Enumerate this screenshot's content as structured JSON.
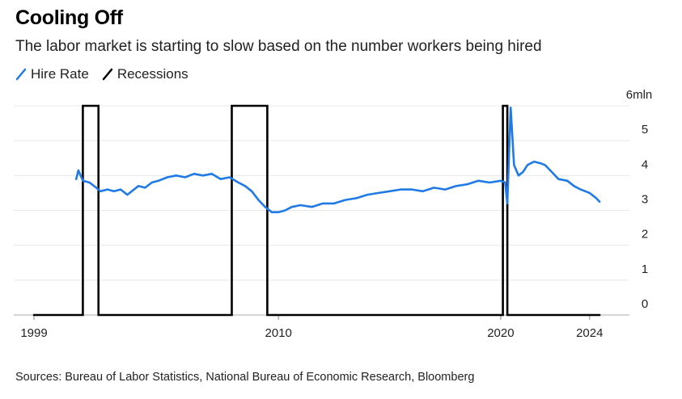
{
  "title": "Cooling Off",
  "subtitle": "The labor market is starting to slow based on the number workers being hired",
  "source": "Sources: Bureau of Labor Statistics, National Bureau of Economic Research, Bloomberg",
  "legend": [
    {
      "name": "Hire Rate",
      "color": "#1f7ae6"
    },
    {
      "name": "Recessions",
      "color": "#000000"
    }
  ],
  "chart_data": {
    "type": "line",
    "title": "Cooling Off",
    "subtitle": "The labor market is starting to slow based on the number workers being hired",
    "xlabel": "",
    "ylabel": "",
    "x_range": [
      1999,
      2024.7
    ],
    "ylim": [
      0,
      6
    ],
    "y_unit": "mln",
    "x_ticks": [
      "1999",
      "2010",
      "2020",
      "2024"
    ],
    "x_tick_values": [
      1999,
      2010,
      2020,
      2024
    ],
    "y_ticks": [
      "0",
      "1",
      "2",
      "3",
      "4",
      "5",
      "6mln"
    ],
    "y_tick_values": [
      0,
      1,
      2,
      3,
      4,
      5,
      6
    ],
    "grid": true,
    "legend_position": "top-left",
    "series": [
      {
        "name": "Hire Rate",
        "color": "#1f7ae6",
        "x": [
          2000.9,
          2001.0,
          2001.2,
          2001.5,
          2001.8,
          2002.0,
          2002.3,
          2002.6,
          2002.9,
          2003.2,
          2003.5,
          2003.7,
          2004.0,
          2004.3,
          2004.6,
          2005.0,
          2005.4,
          2005.8,
          2006.2,
          2006.6,
          2007.0,
          2007.4,
          2007.8,
          2008.2,
          2008.5,
          2008.8,
          2009.1,
          2009.4,
          2009.7,
          2010.0,
          2010.3,
          2010.6,
          2011.0,
          2011.5,
          2012.0,
          2012.5,
          2013.0,
          2013.5,
          2014.0,
          2014.5,
          2015.0,
          2015.5,
          2016.0,
          2016.5,
          2017.0,
          2017.5,
          2018.0,
          2018.5,
          2019.0,
          2019.5,
          2020.0,
          2020.2,
          2020.3,
          2020.45,
          2020.6,
          2020.8,
          2021.0,
          2021.2,
          2021.5,
          2021.8,
          2022.0,
          2022.3,
          2022.6,
          2023.0,
          2023.3,
          2023.6,
          2024.0,
          2024.3,
          2024.45
        ],
        "values": [
          3.9,
          4.15,
          3.85,
          3.8,
          3.65,
          3.55,
          3.6,
          3.55,
          3.6,
          3.45,
          3.6,
          3.7,
          3.65,
          3.8,
          3.85,
          3.95,
          4.0,
          3.95,
          4.05,
          4.0,
          4.05,
          3.9,
          3.95,
          3.8,
          3.7,
          3.55,
          3.3,
          3.1,
          2.95,
          2.95,
          3.0,
          3.1,
          3.15,
          3.1,
          3.2,
          3.2,
          3.3,
          3.35,
          3.45,
          3.5,
          3.55,
          3.6,
          3.6,
          3.55,
          3.65,
          3.6,
          3.7,
          3.75,
          3.85,
          3.8,
          3.85,
          3.8,
          3.2,
          5.95,
          4.3,
          4.0,
          4.1,
          4.3,
          4.4,
          4.35,
          4.3,
          4.1,
          3.9,
          3.85,
          3.7,
          3.6,
          3.5,
          3.35,
          3.25
        ]
      },
      {
        "name": "Recessions",
        "color": "#000000",
        "x": [
          1999,
          2001.2,
          2001.2,
          2001.9,
          2001.9,
          2007.9,
          2007.9,
          2009.5,
          2009.5,
          2020.1,
          2020.1,
          2020.3,
          2020.3,
          2024.45
        ],
        "values": [
          0,
          0,
          6,
          6,
          0,
          0,
          6,
          6,
          0,
          0,
          6,
          6,
          0,
          0
        ]
      }
    ]
  }
}
